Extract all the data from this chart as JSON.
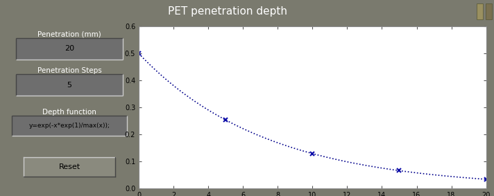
{
  "title": "PET penetration depth",
  "penetration_mm": 20,
  "penetration_steps": 5,
  "depth_function_display": "y=exp(-x*exp(1)/max(x));",
  "xlim": [
    0,
    20
  ],
  "ylim": [
    0,
    0.6
  ],
  "xticks": [
    0,
    2,
    4,
    6,
    8,
    10,
    12,
    14,
    16,
    18,
    20
  ],
  "yticks": [
    0,
    0.1,
    0.2,
    0.3,
    0.4,
    0.5,
    0.6
  ],
  "marker_x": [
    0,
    5,
    10,
    15,
    20
  ],
  "line_color": "#00008B",
  "marker_color": "#1010AA",
  "plot_bg": "#ffffff",
  "outer_bg": "#7A7A6E",
  "title_bar_color": "#C8964A",
  "panel_bg": "#7A7A6E",
  "box_bg": "#6E6E6E",
  "box_border_light": "#BBBBBB",
  "box_border_dark": "#444444",
  "label_penetration": "Penetration (mm)",
  "value_penetration": "20",
  "label_steps": "Penetration Steps",
  "value_steps": "5",
  "label_depth": "Depth function",
  "value_depth": "y=exp(-x*exp(1)/max(x));",
  "reset_label": "Reset",
  "figwidth": 7.12,
  "figheight": 2.83,
  "dpi": 100,
  "title_fontsize": 11,
  "label_fontsize": 7.5,
  "value_fontsize": 8,
  "tick_fontsize": 7
}
